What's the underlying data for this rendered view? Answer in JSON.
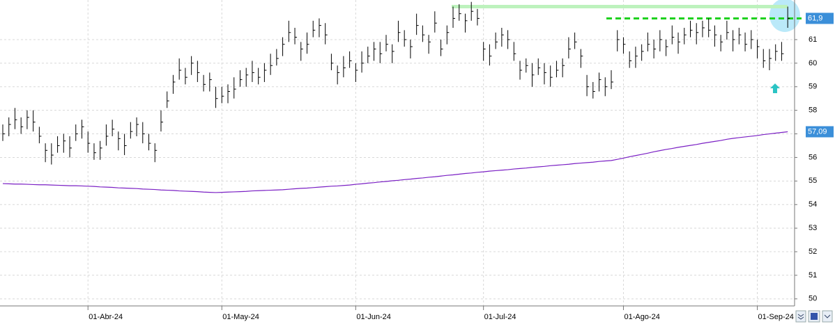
{
  "chart_data": {
    "type": "hlc",
    "categories": [
      null,
      null,
      null,
      null,
      null,
      null,
      null,
      null,
      null,
      null,
      null,
      null,
      null,
      null,
      "01-Abr-24",
      null,
      null,
      null,
      null,
      null,
      null,
      null,
      null,
      null,
      null,
      null,
      null,
      null,
      null,
      null,
      null,
      null,
      null,
      null,
      null,
      null,
      "01-May-24",
      null,
      null,
      null,
      null,
      null,
      null,
      null,
      null,
      null,
      null,
      null,
      null,
      null,
      null,
      null,
      null,
      null,
      null,
      null,
      null,
      null,
      "01-Jun-24",
      null,
      null,
      null,
      null,
      null,
      null,
      null,
      null,
      null,
      null,
      null,
      null,
      null,
      null,
      null,
      null,
      null,
      null,
      null,
      null,
      "01-Jul-24",
      null,
      null,
      null,
      null,
      null,
      null,
      null,
      null,
      null,
      null,
      null,
      null,
      null,
      null,
      null,
      null,
      null,
      null,
      null,
      null,
      null,
      null,
      "01-Ago-24",
      null,
      null,
      null,
      null,
      null,
      null,
      null,
      null,
      null,
      null,
      null,
      null,
      null,
      null,
      null,
      null,
      null,
      null,
      null,
      null,
      null,
      "01-Sep-24",
      null,
      null,
      null,
      null,
      null
    ],
    "close": [
      57.0,
      57.4,
      57.6,
      57.3,
      57.7,
      57.5,
      56.9,
      56.3,
      56.1,
      56.5,
      56.7,
      56.4,
      57.0,
      57.3,
      56.6,
      56.2,
      56.4,
      56.9,
      57.2,
      56.8,
      56.5,
      57.1,
      57.4,
      57.0,
      56.6,
      56.3,
      57.5,
      58.4,
      59.2,
      59.7,
      59.4,
      60.0,
      59.6,
      59.1,
      59.3,
      58.5,
      58.6,
      58.8,
      58.9,
      59.3,
      59.5,
      59.6,
      59.4,
      59.7,
      59.9,
      60.2,
      60.8,
      61.3,
      61.1,
      60.6,
      60.8,
      61.4,
      61.6,
      61.2,
      60.0,
      59.6,
      59.8,
      60.1,
      59.7,
      60.0,
      60.3,
      60.6,
      60.4,
      60.8,
      60.5,
      61.3,
      61.0,
      60.7,
      61.6,
      61.2,
      60.9,
      61.7,
      60.6,
      61.3,
      61.9,
      62.1,
      61.8,
      62.2,
      61.9,
      60.6,
      60.3,
      60.9,
      61.2,
      61.0,
      60.4,
      59.7,
      59.9,
      59.5,
      59.8,
      59.6,
      59.4,
      59.7,
      59.9,
      60.6,
      60.9,
      60.3,
      59.0,
      58.8,
      59.3,
      59.0,
      59.2,
      61.0,
      60.8,
      60.1,
      60.3,
      60.5,
      60.8,
      60.6,
      61.0,
      60.7,
      61.1,
      60.9,
      61.2,
      61.4,
      61.3,
      61.5,
      61.4,
      61.2,
      60.9,
      61.3,
      61.0,
      61.2,
      60.8,
      61.0,
      60.7,
      60.1,
      60.2,
      60.5,
      60.4,
      61.9
    ],
    "high": [
      57.4,
      57.7,
      58.1,
      57.7,
      58.0,
      58.0,
      57.3,
      56.6,
      56.6,
      56.9,
      57.0,
      56.9,
      57.4,
      57.6,
      57.1,
      56.6,
      56.7,
      57.4,
      57.6,
      57.1,
      57.0,
      57.5,
      57.7,
      57.5,
      57.0,
      56.6,
      58.0,
      58.8,
      59.5,
      60.2,
      59.8,
      60.3,
      60.1,
      59.5,
      59.6,
      59.0,
      59.0,
      59.1,
      59.4,
      59.7,
      59.8,
      60.1,
      59.8,
      60.0,
      60.4,
      60.6,
      61.1,
      61.8,
      61.5,
      60.9,
      61.3,
      61.8,
      61.9,
      61.7,
      60.4,
      59.9,
      60.3,
      60.5,
      60.0,
      60.5,
      60.7,
      60.9,
      60.9,
      61.2,
      60.8,
      61.8,
      61.4,
      61.0,
      62.1,
      61.6,
      61.2,
      62.2,
      61.0,
      61.6,
      62.4,
      62.5,
      62.1,
      62.6,
      62.3,
      60.9,
      60.8,
      61.3,
      61.5,
      61.4,
      60.9,
      60.1,
      60.2,
      60.0,
      60.2,
      60.0,
      59.9,
      60.1,
      60.2,
      61.1,
      61.3,
      60.6,
      59.5,
      59.2,
      59.6,
      59.4,
      59.7,
      61.4,
      61.1,
      60.5,
      60.7,
      60.8,
      61.3,
      61.0,
      61.4,
      61.0,
      61.6,
      61.3,
      61.5,
      61.8,
      61.7,
      61.8,
      61.9,
      61.6,
      61.2,
      61.8,
      61.4,
      61.5,
      61.3,
      61.4,
      61.0,
      60.6,
      60.6,
      60.8,
      60.9,
      62.4
    ],
    "low": [
      56.7,
      56.9,
      57.2,
      57.0,
      57.2,
      57.1,
      56.6,
      55.8,
      55.7,
      56.2,
      56.2,
      56.0,
      56.7,
      56.8,
      56.2,
      55.9,
      55.9,
      56.5,
      56.9,
      56.3,
      56.1,
      56.8,
      56.9,
      56.6,
      56.3,
      55.8,
      57.1,
      58.1,
      58.7,
      59.3,
      59.1,
      59.5,
      59.2,
      58.8,
      58.8,
      58.1,
      58.3,
      58.3,
      58.5,
      59.0,
      59.0,
      59.2,
      59.1,
      59.2,
      59.5,
      59.9,
      60.3,
      60.9,
      60.8,
      60.1,
      60.4,
      61.1,
      61.1,
      60.8,
      59.7,
      59.1,
      59.4,
      59.8,
      59.2,
      59.6,
      60.0,
      60.1,
      60.0,
      60.5,
      60.0,
      60.9,
      60.7,
      60.2,
      61.2,
      60.9,
      60.4,
      61.3,
      60.3,
      60.8,
      61.5,
      61.8,
      61.3,
      61.8,
      61.6,
      60.1,
      59.9,
      60.6,
      60.7,
      60.6,
      60.1,
      59.3,
      59.6,
      59.0,
      59.5,
      59.1,
      59.0,
      59.4,
      59.4,
      60.2,
      60.6,
      59.8,
      58.6,
      58.5,
      58.8,
      58.6,
      58.9,
      60.5,
      60.4,
      59.8,
      59.8,
      60.1,
      60.5,
      60.2,
      60.5,
      60.3,
      60.8,
      60.4,
      60.8,
      61.1,
      60.8,
      61.1,
      61.1,
      60.7,
      60.5,
      61.0,
      60.5,
      60.8,
      60.5,
      60.6,
      60.2,
      59.8,
      59.7,
      60.1,
      60.1,
      61.5
    ],
    "bar_color": "#000000",
    "moving_average": {
      "color": "#7a1fc4",
      "values": [
        54.89,
        54.88,
        54.87,
        54.87,
        54.86,
        54.85,
        54.84,
        54.84,
        54.83,
        54.82,
        54.81,
        54.8,
        54.8,
        54.79,
        54.78,
        54.77,
        54.75,
        54.74,
        54.73,
        54.71,
        54.7,
        54.69,
        54.68,
        54.66,
        54.65,
        54.64,
        54.62,
        54.61,
        54.6,
        54.58,
        54.57,
        54.56,
        54.55,
        54.53,
        54.52,
        54.51,
        54.52,
        54.53,
        54.54,
        54.55,
        54.56,
        54.58,
        54.59,
        54.6,
        54.61,
        54.62,
        54.63,
        54.65,
        54.67,
        54.69,
        54.7,
        54.72,
        54.74,
        54.76,
        54.78,
        54.79,
        54.81,
        54.83,
        54.86,
        54.88,
        54.91,
        54.93,
        54.96,
        54.98,
        55.01,
        55.03,
        55.06,
        55.08,
        55.11,
        55.13,
        55.16,
        55.18,
        55.21,
        55.24,
        55.26,
        55.29,
        55.32,
        55.34,
        55.37,
        55.39,
        55.42,
        55.44,
        55.46,
        55.48,
        55.51,
        55.53,
        55.55,
        55.58,
        55.6,
        55.62,
        55.65,
        55.67,
        55.69,
        55.71,
        55.74,
        55.76,
        55.78,
        55.8,
        55.83,
        55.85,
        55.87,
        55.92,
        55.97,
        56.03,
        56.08,
        56.13,
        56.18,
        56.24,
        56.29,
        56.34,
        56.38,
        56.43,
        56.47,
        56.51,
        56.55,
        56.6,
        56.64,
        56.68,
        56.72,
        56.77,
        56.81,
        56.84,
        56.87,
        56.9,
        56.93,
        56.97,
        57.0,
        57.03,
        57.06,
        57.09
      ]
    },
    "reference_lines": [
      {
        "value": 62.4,
        "color": "#bdf2bd",
        "dashed": false
      },
      {
        "value": 61.9,
        "color": "#1fd11f",
        "dashed": true
      }
    ],
    "price_labels": [
      {
        "value": 61.9,
        "label": "61,9",
        "color": "#3b8fd9"
      },
      {
        "value": 57.09,
        "label": "57,09",
        "color": "#3b8fd9"
      }
    ],
    "ylim": [
      49.7,
      62.68
    ],
    "yticks": [
      50,
      51,
      52,
      53,
      54,
      55,
      56,
      57,
      58,
      59,
      60,
      61
    ],
    "grid": true
  }
}
